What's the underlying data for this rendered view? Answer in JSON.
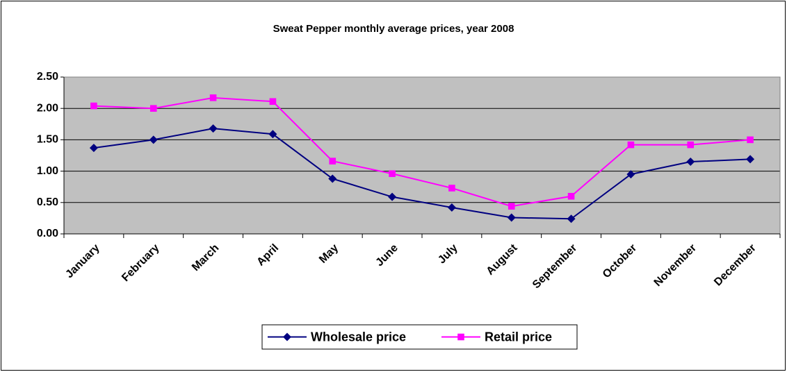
{
  "chart_data": {
    "type": "line",
    "title": "Sweat Pepper monthly average prices, year 2008",
    "categories": [
      "January",
      "February",
      "March",
      "April",
      "May",
      "June",
      "July",
      "August",
      "September",
      "October",
      "November",
      "December"
    ],
    "series": [
      {
        "name": "Wholesale price",
        "color": "#000080",
        "marker": "diamond",
        "values": [
          1.37,
          1.5,
          1.68,
          1.59,
          0.88,
          0.59,
          0.42,
          0.26,
          0.24,
          0.95,
          1.15,
          1.19
        ]
      },
      {
        "name": "Retail price",
        "color": "#ff00ff",
        "marker": "square",
        "values": [
          2.04,
          2.0,
          2.17,
          2.11,
          1.16,
          0.96,
          0.73,
          0.44,
          0.6,
          1.42,
          1.42,
          1.5
        ]
      }
    ],
    "ylim": [
      0,
      2.5
    ],
    "yticks": [
      {
        "value": 0,
        "label": "0.00"
      },
      {
        "value": 0.5,
        "label": "0.50"
      },
      {
        "value": 1,
        "label": "1.00"
      },
      {
        "value": 1.5,
        "label": "1.50"
      },
      {
        "value": 2,
        "label": "2.00"
      },
      {
        "value": 2.5,
        "label": "2.50"
      }
    ],
    "grid": true,
    "legend": "bottom"
  }
}
